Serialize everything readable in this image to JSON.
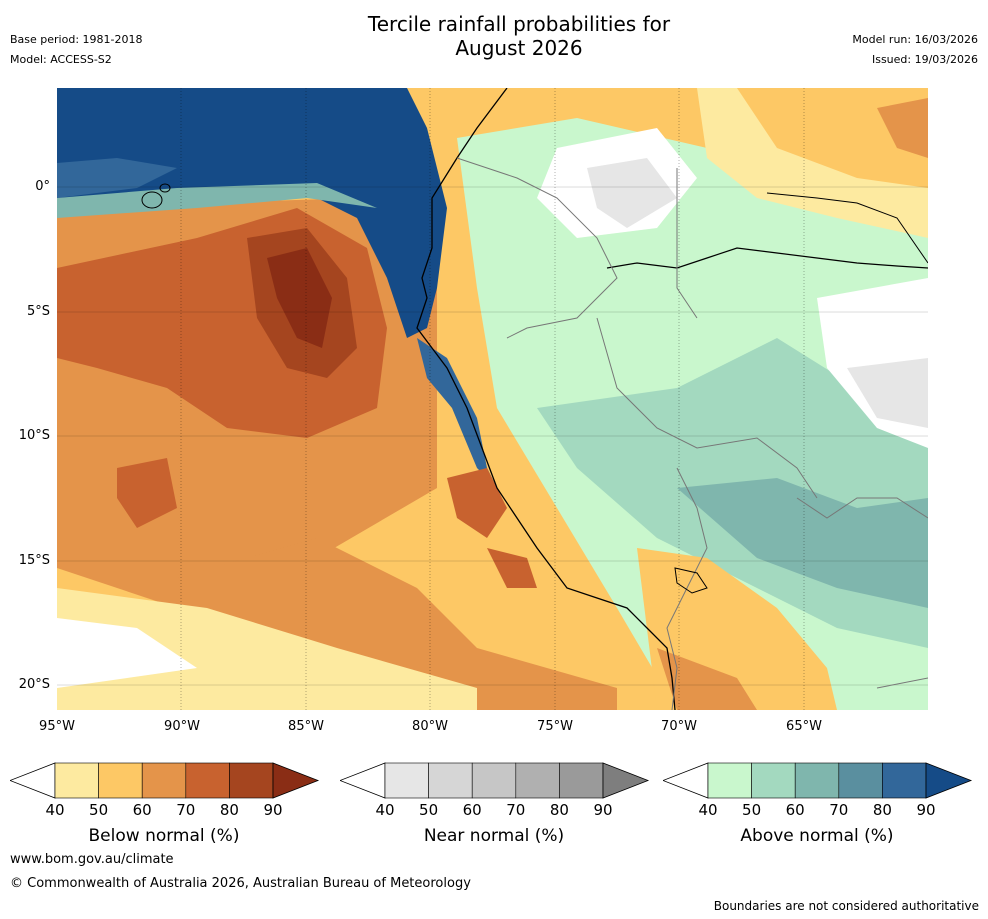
{
  "title_line1": "Tercile rainfall probabilities for",
  "title_line2": "August 2026",
  "base_period": "Base period: 1981-2018",
  "model": "Model: ACCESS-S2",
  "model_run": "Model run: 16/03/2026",
  "issued": "Issued: 19/03/2026",
  "lat_labels": [
    "0°",
    "5°S",
    "10°S",
    "15°S",
    "20°S"
  ],
  "lon_labels": [
    "95°W",
    "90°W",
    "85°W",
    "80°W",
    "75°W",
    "70°W",
    "65°W"
  ],
  "colorbars": [
    {
      "title": "Below normal (%)",
      "ticks": [
        "40",
        "50",
        "60",
        "70",
        "80",
        "90"
      ],
      "colors": [
        "#ffffff",
        "#fdeaa0",
        "#fdc865",
        "#e4944a",
        "#c8622f",
        "#a5451f",
        "#8a2d15"
      ]
    },
    {
      "title": "Near normal (%)",
      "ticks": [
        "40",
        "50",
        "60",
        "70",
        "80",
        "90"
      ],
      "colors": [
        "#ffffff",
        "#e6e6e6",
        "#d6d6d6",
        "#c6c6c6",
        "#b0b0b0",
        "#9a9a9a",
        "#7e7e7e"
      ]
    },
    {
      "title": "Above normal (%)",
      "ticks": [
        "40",
        "50",
        "60",
        "70",
        "80",
        "90"
      ],
      "colors": [
        "#ffffff",
        "#c9f7cd",
        "#a3d9bf",
        "#7fb6ad",
        "#5a8f9f",
        "#32679a",
        "#154b87"
      ]
    }
  ],
  "website": "www.bom.gov.au/climate",
  "copyright": "© Commonwealth of Australia 2026, Australian Bureau of Meteorology",
  "disclaimer": "Boundaries are not considered authoritative"
}
